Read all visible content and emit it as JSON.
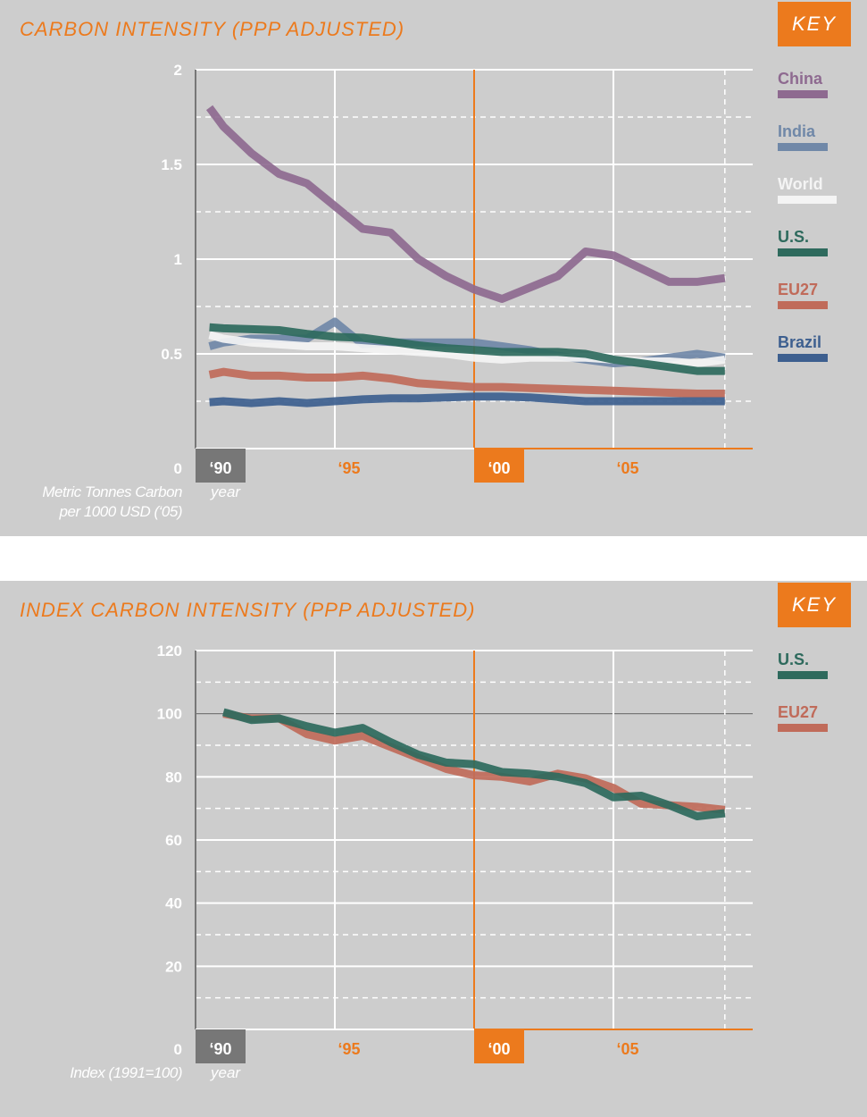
{
  "chart_data": [
    {
      "type": "line",
      "title": "CARBON INTENSITY (PPP ADJUSTED)",
      "ylabel": "Metric Tonnes Carbon per 1000 USD ('05)",
      "xlabel": "year",
      "ylim": [
        0,
        2
      ],
      "yticks": [
        "0",
        "0.5",
        "1",
        "1.5",
        "2"
      ],
      "xlim": [
        1990,
        2010
      ],
      "xticks": [
        {
          "x": 1990,
          "label": "‘90",
          "highlight": "grey"
        },
        {
          "x": 1995,
          "label": "‘95",
          "highlight": "none"
        },
        {
          "x": 2000,
          "label": "‘00",
          "highlight": "orange"
        },
        {
          "x": 2005,
          "label": "‘05",
          "highlight": "none"
        }
      ],
      "grid": true,
      "legend_title": "KEY",
      "legend_position": "right",
      "x": [
        1990.5,
        1991,
        1992,
        1993,
        1994,
        1995,
        1996,
        1997,
        1998,
        1999,
        2000,
        2001,
        2002,
        2003,
        2004,
        2005,
        2006,
        2007,
        2008,
        2009
      ],
      "series": [
        {
          "name": "China",
          "color": "#8e6a90",
          "values": [
            1.8,
            1.7,
            1.56,
            1.45,
            1.4,
            1.28,
            1.16,
            1.14,
            1.0,
            0.91,
            0.84,
            0.79,
            0.85,
            0.91,
            1.04,
            1.02,
            0.95,
            0.88,
            0.88,
            0.9
          ]
        },
        {
          "name": "India",
          "color": "#7088a8",
          "values": [
            0.54,
            0.56,
            0.58,
            0.58,
            0.58,
            0.67,
            0.55,
            0.56,
            0.56,
            0.56,
            0.56,
            0.54,
            0.52,
            0.49,
            0.47,
            0.45,
            0.46,
            0.48,
            0.5,
            0.48
          ]
        },
        {
          "name": "World",
          "color": "#f4f4f4",
          "values": [
            0.6,
            0.58,
            0.56,
            0.55,
            0.54,
            0.54,
            0.53,
            0.52,
            0.51,
            0.5,
            0.48,
            0.47,
            0.48,
            0.48,
            0.48,
            0.47,
            0.46,
            0.46,
            0.45,
            0.47
          ]
        },
        {
          "name": "U.S.",
          "color": "#2e6a5d",
          "values": [
            0.64,
            0.635,
            0.63,
            0.625,
            0.605,
            0.59,
            0.585,
            0.565,
            0.545,
            0.53,
            0.52,
            0.51,
            0.51,
            0.51,
            0.5,
            0.47,
            0.45,
            0.43,
            0.41,
            0.41
          ]
        },
        {
          "name": "EU27",
          "color": "#c06b5a",
          "values": [
            0.39,
            0.405,
            0.385,
            0.385,
            0.375,
            0.375,
            0.385,
            0.37,
            0.345,
            0.335,
            0.325,
            0.325,
            0.32,
            0.315,
            0.31,
            0.305,
            0.3,
            0.295,
            0.29,
            0.29
          ]
        },
        {
          "name": "Brazil",
          "color": "#3d5f8f",
          "values": [
            0.245,
            0.25,
            0.24,
            0.25,
            0.24,
            0.25,
            0.26,
            0.265,
            0.265,
            0.27,
            0.275,
            0.275,
            0.27,
            0.26,
            0.25,
            0.25,
            0.25,
            0.25,
            0.25,
            0.25
          ]
        }
      ]
    },
    {
      "type": "line",
      "title": "INDEX CARBON INTENSITY (PPP ADJUSTED)",
      "ylabel": "Index (1991=100)",
      "xlabel": "year",
      "ylim": [
        0,
        120
      ],
      "yticks": [
        "0",
        "20",
        "40",
        "60",
        "80",
        "100",
        "120"
      ],
      "xlim": [
        1990,
        2010
      ],
      "xticks": [
        {
          "x": 1990,
          "label": "‘90",
          "highlight": "grey"
        },
        {
          "x": 1995,
          "label": "‘95",
          "highlight": "none"
        },
        {
          "x": 2000,
          "label": "‘00",
          "highlight": "orange"
        },
        {
          "x": 2005,
          "label": "‘05",
          "highlight": "none"
        }
      ],
      "grid": true,
      "legend_title": "KEY",
      "legend_position": "right",
      "x": [
        1991,
        1992,
        1993,
        1994,
        1995,
        1996,
        1997,
        1998,
        1999,
        2000,
        2001,
        2002,
        2003,
        2004,
        2005,
        2006,
        2007,
        2008,
        2009
      ],
      "series": [
        {
          "name": "EU27",
          "color": "#c06b5a",
          "values": [
            100,
            98.5,
            98.5,
            93.5,
            91.5,
            93,
            89.5,
            86,
            82.5,
            80.5,
            80,
            78.5,
            81,
            79.5,
            76.5,
            71.5,
            71,
            70.5,
            69.5
          ]
        },
        {
          "name": "U.S.",
          "color": "#2e6a5d",
          "values": [
            100.5,
            98,
            98.5,
            96,
            94,
            95.5,
            91,
            87,
            84.5,
            84,
            81.5,
            81,
            80,
            78,
            73.5,
            74,
            71,
            67.5,
            68.5
          ]
        }
      ],
      "legend_order": [
        "U.S.",
        "EU27"
      ]
    }
  ],
  "ui": {
    "key_label": "KEY",
    "chart1_unit_line1": "Metric Tonnes Carbon",
    "chart1_unit_line2": "per 1000 USD (‘05)",
    "chart2_unit": "Index (1991=100)",
    "year_label": "year"
  },
  "colors": {
    "background": "#cdcdcd",
    "accent": "#ec7a1d",
    "axis_grey": "#777777",
    "grid_white": "#ffffff"
  }
}
